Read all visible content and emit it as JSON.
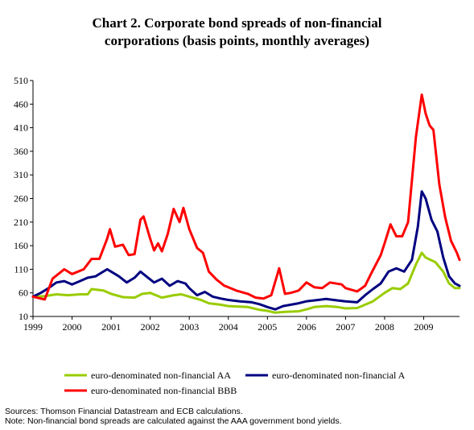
{
  "title": {
    "line1": "Chart 2. Corporate bond spreads of non-financial",
    "line2": "corporations (basis points, monthly averages)"
  },
  "chart_data": {
    "type": "line",
    "ylim": [
      10,
      510
    ],
    "yticks": [
      "10",
      "60",
      "110",
      "160",
      "210",
      "260",
      "310",
      "360",
      "410",
      "460",
      "510"
    ],
    "xlim": [
      1999,
      2009.917
    ],
    "xticks": [
      "1999",
      "2000",
      "2001",
      "2002",
      "2003",
      "2004",
      "2005",
      "2006",
      "2007",
      "2008",
      "2009"
    ],
    "grid": false,
    "legend_position": "bottom",
    "series": [
      {
        "name": "euro-denominated non-financial AA",
        "color": "#99cc00",
        "points": [
          [
            1999.0,
            52
          ],
          [
            1999.3,
            53
          ],
          [
            1999.6,
            57
          ],
          [
            1999.9,
            55
          ],
          [
            2000.2,
            57
          ],
          [
            2000.4,
            57
          ],
          [
            2000.5,
            68
          ],
          [
            2000.8,
            65
          ],
          [
            2001.0,
            58
          ],
          [
            2001.3,
            51
          ],
          [
            2001.6,
            50
          ],
          [
            2001.8,
            58
          ],
          [
            2002.0,
            60
          ],
          [
            2002.3,
            50
          ],
          [
            2002.6,
            55
          ],
          [
            2002.8,
            57
          ],
          [
            2003.0,
            52
          ],
          [
            2003.3,
            45
          ],
          [
            2003.5,
            38
          ],
          [
            2003.8,
            35
          ],
          [
            2004.0,
            32
          ],
          [
            2004.5,
            30
          ],
          [
            2004.8,
            24
          ],
          [
            2005.0,
            22
          ],
          [
            2005.2,
            18
          ],
          [
            2005.5,
            20
          ],
          [
            2005.8,
            21
          ],
          [
            2006.0,
            25
          ],
          [
            2006.2,
            30
          ],
          [
            2006.5,
            32
          ],
          [
            2006.8,
            30
          ],
          [
            2007.0,
            27
          ],
          [
            2007.3,
            28
          ],
          [
            2007.5,
            35
          ],
          [
            2007.7,
            42
          ],
          [
            2008.0,
            60
          ],
          [
            2008.2,
            70
          ],
          [
            2008.4,
            68
          ],
          [
            2008.6,
            80
          ],
          [
            2008.8,
            120
          ],
          [
            2008.95,
            145
          ],
          [
            2009.05,
            135
          ],
          [
            2009.3,
            125
          ],
          [
            2009.5,
            105
          ],
          [
            2009.65,
            80
          ],
          [
            2009.8,
            70
          ],
          [
            2009.917,
            70
          ]
        ]
      },
      {
        "name": "euro-denominated non-financial A",
        "color": "#000080",
        "points": [
          [
            1999.0,
            52
          ],
          [
            1999.2,
            60
          ],
          [
            1999.4,
            70
          ],
          [
            1999.6,
            82
          ],
          [
            1999.8,
            85
          ],
          [
            2000.0,
            78
          ],
          [
            2000.2,
            85
          ],
          [
            2000.4,
            92
          ],
          [
            2000.6,
            95
          ],
          [
            2000.9,
            110
          ],
          [
            2001.0,
            105
          ],
          [
            2001.2,
            95
          ],
          [
            2001.4,
            82
          ],
          [
            2001.6,
            92
          ],
          [
            2001.75,
            105
          ],
          [
            2001.9,
            95
          ],
          [
            2002.1,
            82
          ],
          [
            2002.3,
            90
          ],
          [
            2002.5,
            75
          ],
          [
            2002.7,
            85
          ],
          [
            2002.9,
            80
          ],
          [
            2003.0,
            70
          ],
          [
            2003.2,
            55
          ],
          [
            2003.4,
            62
          ],
          [
            2003.6,
            52
          ],
          [
            2003.8,
            48
          ],
          [
            2004.0,
            45
          ],
          [
            2004.3,
            42
          ],
          [
            2004.6,
            40
          ],
          [
            2004.8,
            36
          ],
          [
            2005.0,
            30
          ],
          [
            2005.2,
            25
          ],
          [
            2005.4,
            32
          ],
          [
            2005.6,
            35
          ],
          [
            2005.8,
            38
          ],
          [
            2006.0,
            42
          ],
          [
            2006.3,
            45
          ],
          [
            2006.5,
            47
          ],
          [
            2006.8,
            44
          ],
          [
            2007.0,
            42
          ],
          [
            2007.3,
            40
          ],
          [
            2007.5,
            55
          ],
          [
            2007.7,
            68
          ],
          [
            2007.9,
            80
          ],
          [
            2008.1,
            105
          ],
          [
            2008.3,
            112
          ],
          [
            2008.5,
            105
          ],
          [
            2008.7,
            130
          ],
          [
            2008.85,
            200
          ],
          [
            2008.95,
            275
          ],
          [
            2009.05,
            260
          ],
          [
            2009.2,
            215
          ],
          [
            2009.35,
            190
          ],
          [
            2009.5,
            135
          ],
          [
            2009.65,
            95
          ],
          [
            2009.8,
            80
          ],
          [
            2009.917,
            75
          ]
        ]
      },
      {
        "name": "euro-denominated non-financial BBB",
        "color": "#ff0000",
        "points": [
          [
            1999.0,
            52
          ],
          [
            1999.3,
            46
          ],
          [
            1999.5,
            90
          ],
          [
            1999.8,
            110
          ],
          [
            2000.0,
            100
          ],
          [
            2000.3,
            110
          ],
          [
            2000.5,
            132
          ],
          [
            2000.7,
            132
          ],
          [
            2000.9,
            175
          ],
          [
            2000.97,
            195
          ],
          [
            2001.1,
            158
          ],
          [
            2001.3,
            162
          ],
          [
            2001.45,
            140
          ],
          [
            2001.6,
            142
          ],
          [
            2001.75,
            215
          ],
          [
            2001.83,
            222
          ],
          [
            2002.0,
            175
          ],
          [
            2002.1,
            150
          ],
          [
            2002.2,
            165
          ],
          [
            2002.3,
            148
          ],
          [
            2002.45,
            185
          ],
          [
            2002.6,
            238
          ],
          [
            2002.75,
            210
          ],
          [
            2002.85,
            240
          ],
          [
            2003.0,
            195
          ],
          [
            2003.2,
            155
          ],
          [
            2003.35,
            145
          ],
          [
            2003.5,
            105
          ],
          [
            2003.7,
            88
          ],
          [
            2003.9,
            75
          ],
          [
            2004.0,
            72
          ],
          [
            2004.2,
            65
          ],
          [
            2004.5,
            58
          ],
          [
            2004.7,
            50
          ],
          [
            2004.9,
            48
          ],
          [
            2005.1,
            55
          ],
          [
            2005.3,
            112
          ],
          [
            2005.45,
            58
          ],
          [
            2005.6,
            60
          ],
          [
            2005.8,
            65
          ],
          [
            2006.0,
            82
          ],
          [
            2006.2,
            72
          ],
          [
            2006.4,
            70
          ],
          [
            2006.6,
            82
          ],
          [
            2006.9,
            78
          ],
          [
            2007.0,
            70
          ],
          [
            2007.3,
            63
          ],
          [
            2007.5,
            75
          ],
          [
            2007.65,
            100
          ],
          [
            2007.9,
            140
          ],
          [
            2008.0,
            165
          ],
          [
            2008.15,
            205
          ],
          [
            2008.3,
            180
          ],
          [
            2008.45,
            180
          ],
          [
            2008.6,
            210
          ],
          [
            2008.8,
            390
          ],
          [
            2008.95,
            480
          ],
          [
            2009.05,
            440
          ],
          [
            2009.15,
            415
          ],
          [
            2009.25,
            405
          ],
          [
            2009.4,
            290
          ],
          [
            2009.55,
            220
          ],
          [
            2009.7,
            170
          ],
          [
            2009.85,
            145
          ],
          [
            2009.917,
            130
          ]
        ]
      }
    ]
  },
  "legend": {
    "aa": "euro-denominated non-financial AA",
    "a": "euro-denominated non-financial A",
    "bbb": "euro-denominated non-financial BBB"
  },
  "notes": {
    "sources": "Sources: Thomson Financial Datastream and ECB calculations.",
    "note": "Note: Non-financial bond spreads are calculated against the AAA government bond yields."
  }
}
